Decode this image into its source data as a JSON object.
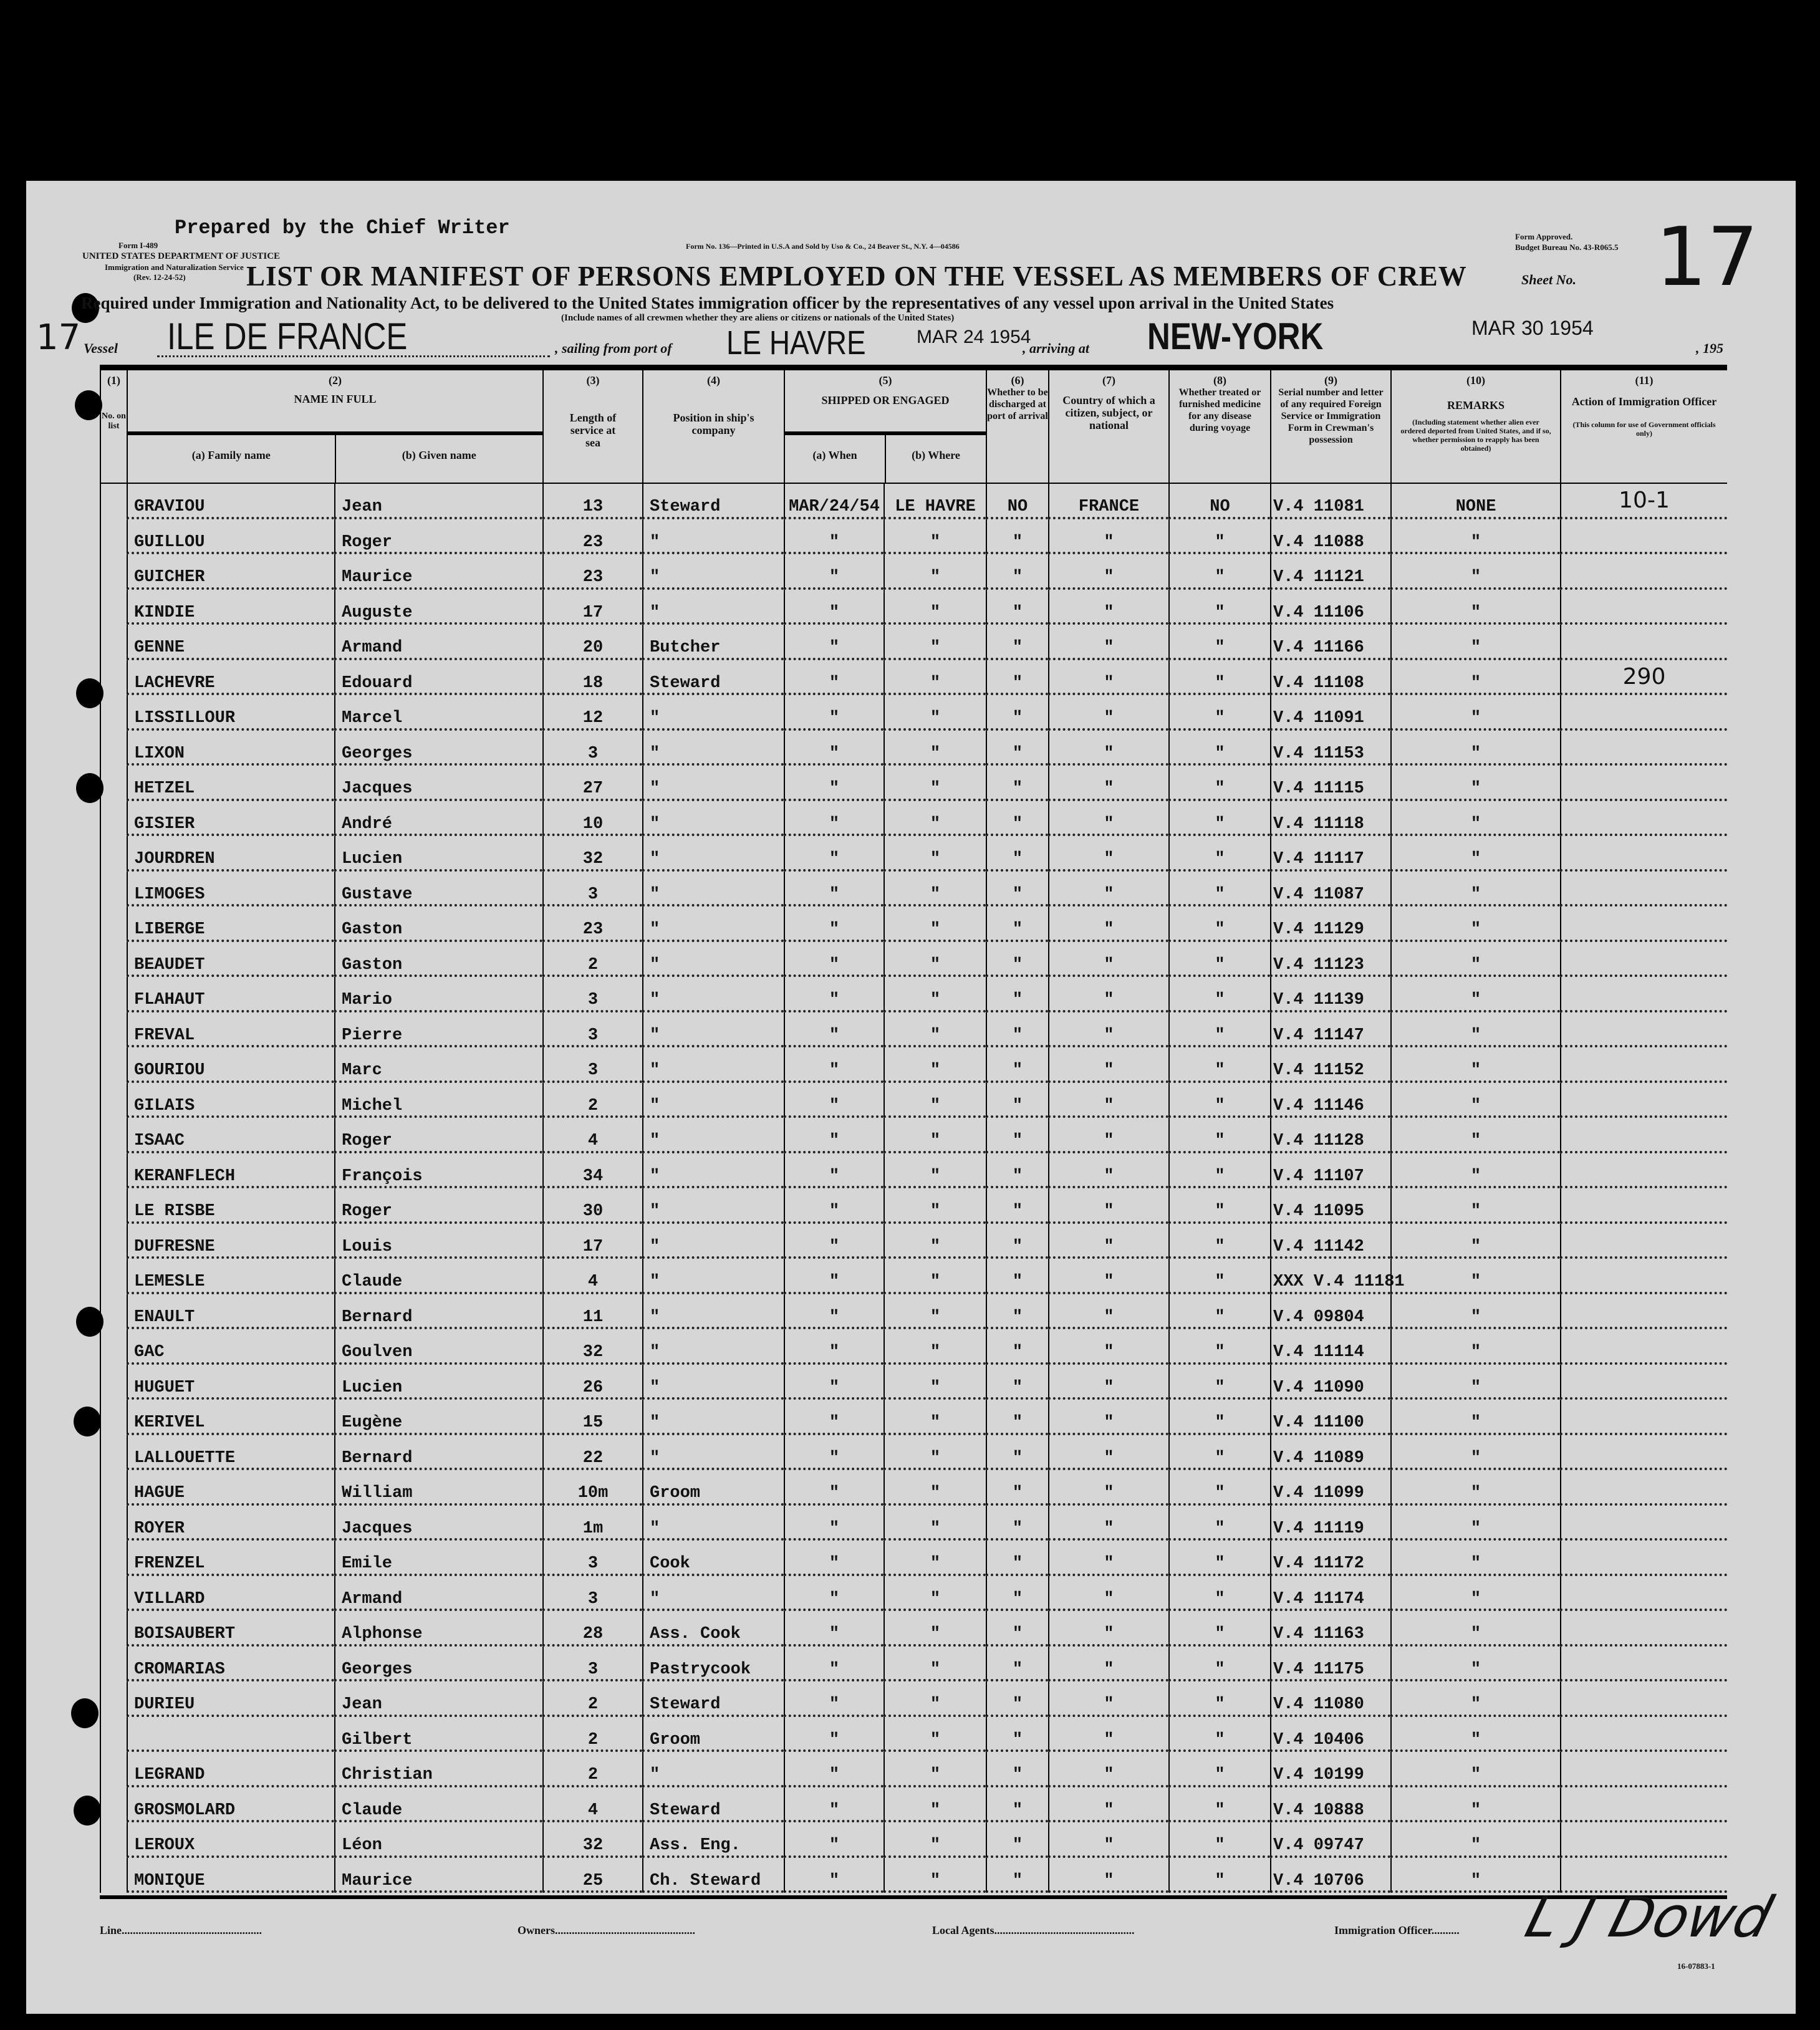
{
  "form": {
    "prepared_by": "Prepared by the Chief Writer",
    "form_number": "Form I-489",
    "department": "UNITED STATES DEPARTMENT OF JUSTICE",
    "service": "Immigration and Naturalization Service",
    "revision": "(Rev. 12-24-52)",
    "printer_note": "Form No. 136—Printed in U.S.A and Sold by Uso & Co., 24 Beaver St., N.Y. 4—04586",
    "approval": "Form Approved.",
    "budget": "Budget Bureau No. 43-R065.5",
    "title": "LIST OR MANIFEST OF PERSONS EMPLOYED ON THE VESSEL AS MEMBERS OF CREW",
    "sheet_label": "Sheet No.",
    "sheet_number": "17",
    "subtitle": "Required under Immigration and Nationality Act, to be delivered to the United States immigration officer by the representatives of any vessel upon arrival in the United States",
    "include_note": "(Include names of all crewmen whether they are aliens or citizens or nationals of the United States)",
    "left_margin_note": "17"
  },
  "voyage": {
    "vessel_label": "Vessel",
    "vessel": "ILE DE FRANCE",
    "sailing_label": ", sailing from port of",
    "port": "LE HAVRE",
    "sail_date": "MAR 24 1954",
    "arriving_label": ", arriving at",
    "destination": "NEW-YORK",
    "arrival_date": "MAR 30 1954",
    "year_suffix": ", 195"
  },
  "columns": [
    {
      "num": "(1)",
      "label": "No. on list"
    },
    {
      "num": "(2)",
      "label": "NAME IN FULL",
      "a": "(a) Family name",
      "b": "(b) Given name"
    },
    {
      "num": "(3)",
      "label": "Length of service at sea"
    },
    {
      "num": "(4)",
      "label": "Position in ship's company"
    },
    {
      "num": "(5)",
      "label": "SHIPPED OR ENGAGED",
      "a": "(a) When",
      "b": "(b) Where"
    },
    {
      "num": "(6)",
      "label": "Whether to be discharged at port of arrival"
    },
    {
      "num": "(7)",
      "label": "Country of which a citizen, subject, or national"
    },
    {
      "num": "(8)",
      "label": "Whether treated or furnished medicine for any disease during voyage"
    },
    {
      "num": "(9)",
      "label": "Serial number and letter of any required Foreign Service or Immigration Form in Crewman's possession"
    },
    {
      "num": "(10)",
      "label": "REMARKS",
      "note": "(Including statement whether alien ever ordered deported from United States, and if so, whether permission to reapply has been obtained)"
    },
    {
      "num": "(11)",
      "label": "Action of Immigration Officer",
      "note": "(This column for use of Government officials only)"
    }
  ],
  "rows": [
    {
      "family": "GRAVIOU",
      "given": "Jean",
      "length": "13",
      "position": "Steward",
      "when": "MAR/24/54",
      "where": "LE HAVRE",
      "discharged": "NO",
      "country": "FRANCE",
      "medicine": "NO",
      "serial": "V.4 11081",
      "remarks": "NONE",
      "action": "10-1"
    },
    {
      "family": "GUILLOU",
      "given": "Roger",
      "length": "23",
      "position": "\"",
      "when": "\"",
      "where": "\"",
      "discharged": "\"",
      "country": "\"",
      "medicine": "\"",
      "serial": "V.4 11088",
      "remarks": "\"",
      "action": ""
    },
    {
      "family": "GUICHER",
      "given": "Maurice",
      "length": "23",
      "position": "\"",
      "when": "\"",
      "where": "\"",
      "discharged": "\"",
      "country": "\"",
      "medicine": "\"",
      "serial": "V.4 11121",
      "remarks": "\"",
      "action": ""
    },
    {
      "family": "KINDIE",
      "given": "Auguste",
      "length": "17",
      "position": "\"",
      "when": "\"",
      "where": "\"",
      "discharged": "\"",
      "country": "\"",
      "medicine": "\"",
      "serial": "V.4 11106",
      "remarks": "\"",
      "action": ""
    },
    {
      "family": "GENNE",
      "given": "Armand",
      "length": "20",
      "position": "Butcher",
      "when": "\"",
      "where": "\"",
      "discharged": "\"",
      "country": "\"",
      "medicine": "\"",
      "serial": "V.4 11166",
      "remarks": "\"",
      "action": ""
    },
    {
      "family": "LACHEVRE",
      "given": "Edouard",
      "length": "18",
      "position": "Steward",
      "when": "\"",
      "where": "\"",
      "discharged": "\"",
      "country": "\"",
      "medicine": "\"",
      "serial": "V.4 11108",
      "remarks": "\"",
      "action": "290"
    },
    {
      "family": "LISSILLOUR",
      "given": "Marcel",
      "length": "12",
      "position": "\"",
      "when": "\"",
      "where": "\"",
      "discharged": "\"",
      "country": "\"",
      "medicine": "\"",
      "serial": "V.4 11091",
      "remarks": "\"",
      "action": ""
    },
    {
      "family": "LIXON",
      "given": "Georges",
      "length": "3",
      "position": "\"",
      "when": "\"",
      "where": "\"",
      "discharged": "\"",
      "country": "\"",
      "medicine": "\"",
      "serial": "V.4 11153",
      "remarks": "\"",
      "action": ""
    },
    {
      "family": "HETZEL",
      "given": "Jacques",
      "length": "27",
      "position": "\"",
      "when": "\"",
      "where": "\"",
      "discharged": "\"",
      "country": "\"",
      "medicine": "\"",
      "serial": "V.4 11115",
      "remarks": "\"",
      "action": ""
    },
    {
      "family": "GISIER",
      "given": "André",
      "length": "10",
      "position": "\"",
      "when": "\"",
      "where": "\"",
      "discharged": "\"",
      "country": "\"",
      "medicine": "\"",
      "serial": "V.4 11118",
      "remarks": "\"",
      "action": ""
    },
    {
      "family": "JOURDREN",
      "given": "Lucien",
      "length": "32",
      "position": "\"",
      "when": "\"",
      "where": "\"",
      "discharged": "\"",
      "country": "\"",
      "medicine": "\"",
      "serial": "V.4 11117",
      "remarks": "\"",
      "action": ""
    },
    {
      "family": "LIMOGES",
      "given": "Gustave",
      "length": "3",
      "position": "\"",
      "when": "\"",
      "where": "\"",
      "discharged": "\"",
      "country": "\"",
      "medicine": "\"",
      "serial": "V.4 11087",
      "remarks": "\"",
      "action": ""
    },
    {
      "family": "LIBERGE",
      "given": "Gaston",
      "length": "23",
      "position": "\"",
      "when": "\"",
      "where": "\"",
      "discharged": "\"",
      "country": "\"",
      "medicine": "\"",
      "serial": "V.4 11129",
      "remarks": "\"",
      "action": ""
    },
    {
      "family": "BEAUDET",
      "given": "Gaston",
      "length": "2",
      "position": "\"",
      "when": "\"",
      "where": "\"",
      "discharged": "\"",
      "country": "\"",
      "medicine": "\"",
      "serial": "V.4 11123",
      "remarks": "\"",
      "action": ""
    },
    {
      "family": "FLAHAUT",
      "given": "Mario",
      "length": "3",
      "position": "\"",
      "when": "\"",
      "where": "\"",
      "discharged": "\"",
      "country": "\"",
      "medicine": "\"",
      "serial": "V.4 11139",
      "remarks": "\"",
      "action": ""
    },
    {
      "family": "FREVAL",
      "given": "Pierre",
      "length": "3",
      "position": "\"",
      "when": "\"",
      "where": "\"",
      "discharged": "\"",
      "country": "\"",
      "medicine": "\"",
      "serial": "V.4 11147",
      "remarks": "\"",
      "action": ""
    },
    {
      "family": "GOURIOU",
      "given": "Marc",
      "length": "3",
      "position": "\"",
      "when": "\"",
      "where": "\"",
      "discharged": "\"",
      "country": "\"",
      "medicine": "\"",
      "serial": "V.4 11152",
      "remarks": "\"",
      "action": ""
    },
    {
      "family": "GILAIS",
      "given": "Michel",
      "length": "2",
      "position": "\"",
      "when": "\"",
      "where": "\"",
      "discharged": "\"",
      "country": "\"",
      "medicine": "\"",
      "serial": "V.4 11146",
      "remarks": "\"",
      "action": ""
    },
    {
      "family": "ISAAC",
      "given": "Roger",
      "length": "4",
      "position": "\"",
      "when": "\"",
      "where": "\"",
      "discharged": "\"",
      "country": "\"",
      "medicine": "\"",
      "serial": "V.4 11128",
      "remarks": "\"",
      "action": ""
    },
    {
      "family": "KERANFLECH",
      "given": "François",
      "length": "34",
      "position": "\"",
      "when": "\"",
      "where": "\"",
      "discharged": "\"",
      "country": "\"",
      "medicine": "\"",
      "serial": "V.4 11107",
      "remarks": "\"",
      "action": ""
    },
    {
      "family": "LE RISBE",
      "given": "Roger",
      "length": "30",
      "position": "\"",
      "when": "\"",
      "where": "\"",
      "discharged": "\"",
      "country": "\"",
      "medicine": "\"",
      "serial": "V.4 11095",
      "remarks": "\"",
      "action": ""
    },
    {
      "family": "DUFRESNE",
      "given": "Louis",
      "length": "17",
      "position": "\"",
      "when": "\"",
      "where": "\"",
      "discharged": "\"",
      "country": "\"",
      "medicine": "\"",
      "serial": "V.4 11142",
      "remarks": "\"",
      "action": ""
    },
    {
      "family": "LEMESLE",
      "given": "Claude",
      "length": "4",
      "position": "\"",
      "when": "\"",
      "where": "\"",
      "discharged": "\"",
      "country": "\"",
      "medicine": "\"",
      "serial": "XXX V.4 11181",
      "remarks": "\"",
      "action": ""
    },
    {
      "family": "ENAULT",
      "given": "Bernard",
      "length": "11",
      "position": "\"",
      "when": "\"",
      "where": "\"",
      "discharged": "\"",
      "country": "\"",
      "medicine": "\"",
      "serial": "V.4 09804",
      "remarks": "\"",
      "action": ""
    },
    {
      "family": "GAC",
      "given": "Goulven",
      "length": "32",
      "position": "\"",
      "when": "\"",
      "where": "\"",
      "discharged": "\"",
      "country": "\"",
      "medicine": "\"",
      "serial": "V.4 11114",
      "remarks": "\"",
      "action": ""
    },
    {
      "family": "HUGUET",
      "given": "Lucien",
      "length": "26",
      "position": "\"",
      "when": "\"",
      "where": "\"",
      "discharged": "\"",
      "country": "\"",
      "medicine": "\"",
      "serial": "V.4 11090",
      "remarks": "\"",
      "action": ""
    },
    {
      "family": "KERIVEL",
      "given": "Eugène",
      "length": "15",
      "position": "\"",
      "when": "\"",
      "where": "\"",
      "discharged": "\"",
      "country": "\"",
      "medicine": "\"",
      "serial": "V.4 11100",
      "remarks": "\"",
      "action": ""
    },
    {
      "family": "LALLOUETTE",
      "given": "Bernard",
      "length": "22",
      "position": "\"",
      "when": "\"",
      "where": "\"",
      "discharged": "\"",
      "country": "\"",
      "medicine": "\"",
      "serial": "V.4 11089",
      "remarks": "\"",
      "action": ""
    },
    {
      "family": "HAGUE",
      "given": "William",
      "length": "10m",
      "position": "Groom",
      "when": "\"",
      "where": "\"",
      "discharged": "\"",
      "country": "\"",
      "medicine": "\"",
      "serial": "V.4 11099",
      "remarks": "\"",
      "action": ""
    },
    {
      "family": "ROYER",
      "given": "Jacques",
      "length": "1m",
      "position": "\"",
      "when": "\"",
      "where": "\"",
      "discharged": "\"",
      "country": "\"",
      "medicine": "\"",
      "serial": "V.4 11119",
      "remarks": "\"",
      "action": ""
    },
    {
      "family": "FRENZEL",
      "given": "Emile",
      "length": "3",
      "position": "Cook",
      "when": "\"",
      "where": "\"",
      "discharged": "\"",
      "country": "\"",
      "medicine": "\"",
      "serial": "V.4 11172",
      "remarks": "\"",
      "action": ""
    },
    {
      "family": "VILLARD",
      "given": "Armand",
      "length": "3",
      "position": "\"",
      "when": "\"",
      "where": "\"",
      "discharged": "\"",
      "country": "\"",
      "medicine": "\"",
      "serial": "V.4 11174",
      "remarks": "\"",
      "action": ""
    },
    {
      "family": "BOISAUBERT",
      "given": "Alphonse",
      "length": "28",
      "position": "Ass. Cook",
      "when": "\"",
      "where": "\"",
      "discharged": "\"",
      "country": "\"",
      "medicine": "\"",
      "serial": "V.4 11163",
      "remarks": "\"",
      "action": ""
    },
    {
      "family": "CROMARIAS",
      "given": "Georges",
      "length": "3",
      "position": "Pastrycook",
      "when": "\"",
      "where": "\"",
      "discharged": "\"",
      "country": "\"",
      "medicine": "\"",
      "serial": "V.4 11175",
      "remarks": "\"",
      "action": ""
    },
    {
      "family": "DURIEU",
      "given": "Jean",
      "length": "2",
      "position": "Steward",
      "when": "\"",
      "where": "\"",
      "discharged": "\"",
      "country": "\"",
      "medicine": "\"",
      "serial": "V.4 11080",
      "remarks": "\"",
      "action": ""
    },
    {
      "family": "",
      "given": "Gilbert",
      "length": "2",
      "position": "Groom",
      "when": "\"",
      "where": "\"",
      "discharged": "\"",
      "country": "\"",
      "medicine": "\"",
      "serial": "V.4 10406",
      "remarks": "\"",
      "action": ""
    },
    {
      "family": "LEGRAND",
      "given": "Christian",
      "length": "2",
      "position": "\"",
      "when": "\"",
      "where": "\"",
      "discharged": "\"",
      "country": "\"",
      "medicine": "\"",
      "serial": "V.4 10199",
      "remarks": "\"",
      "action": ""
    },
    {
      "family": "GROSMOLARD",
      "given": "Claude",
      "length": "4",
      "position": "Steward",
      "when": "\"",
      "where": "\"",
      "discharged": "\"",
      "country": "\"",
      "medicine": "\"",
      "serial": "V.4 10888",
      "remarks": "\"",
      "action": ""
    },
    {
      "family": "LEROUX",
      "given": "Léon",
      "length": "32",
      "position": "Ass. Eng.",
      "when": "\"",
      "where": "\"",
      "discharged": "\"",
      "country": "\"",
      "medicine": "\"",
      "serial": "V.4 09747",
      "remarks": "\"",
      "action": ""
    },
    {
      "family": "MONIQUE",
      "given": "Maurice",
      "length": "25",
      "position": "Ch. Steward",
      "when": "\"",
      "where": "\"",
      "discharged": "\"",
      "country": "\"",
      "medicine": "\"",
      "serial": "V.4 10706",
      "remarks": "\"",
      "action": ""
    }
  ],
  "footer": {
    "line_label": "Line",
    "owners_label": "Owners",
    "agents_label": "Local Agents",
    "officer_label": "Immigration Officer",
    "signature": "L J Dowd",
    "form_code": "16-07883-1"
  }
}
